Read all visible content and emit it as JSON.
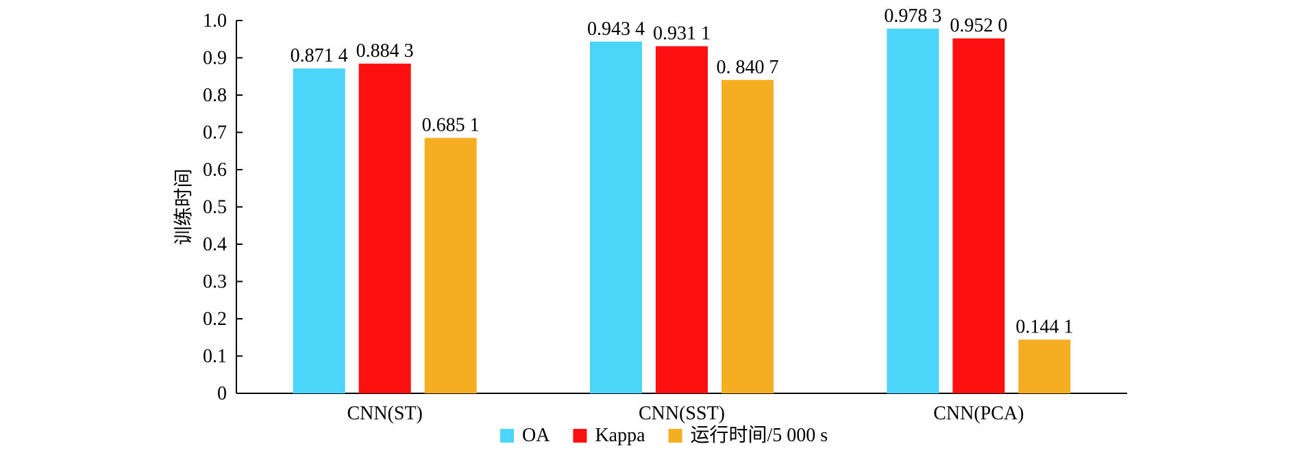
{
  "chart_data": {
    "type": "bar",
    "categories": [
      "CNN(ST)",
      "CNN(SST)",
      "CNN(PCA)"
    ],
    "series": [
      {
        "name": "OA",
        "values": [
          0.8714,
          0.9434,
          0.9783
        ],
        "labels": [
          "0.871 4",
          "0.943 4",
          "0.978 3"
        ],
        "color": "#4AD5F9"
      },
      {
        "name": "Kappa",
        "values": [
          0.8843,
          0.9311,
          0.952
        ],
        "labels": [
          "0.884 3",
          "0.931 1",
          "0.952 0"
        ],
        "color": "#FF1010"
      },
      {
        "name": "运行时间/5 000 s",
        "values": [
          0.6851,
          0.8407,
          0.1441
        ],
        "labels": [
          "0.685 1",
          "0. 840 7",
          "0.144 1"
        ],
        "color": "#F5AE21"
      }
    ],
    "ylabel": "训练时间",
    "xlabel": "",
    "ylim": [
      0,
      1.0
    ],
    "yticks": [
      "0",
      "0.1",
      "0.2",
      "0.3",
      "0.4",
      "0.5",
      "0.6",
      "0.7",
      "0.8",
      "0.9",
      "1.0"
    ],
    "grid": false,
    "legend": "bottom"
  }
}
